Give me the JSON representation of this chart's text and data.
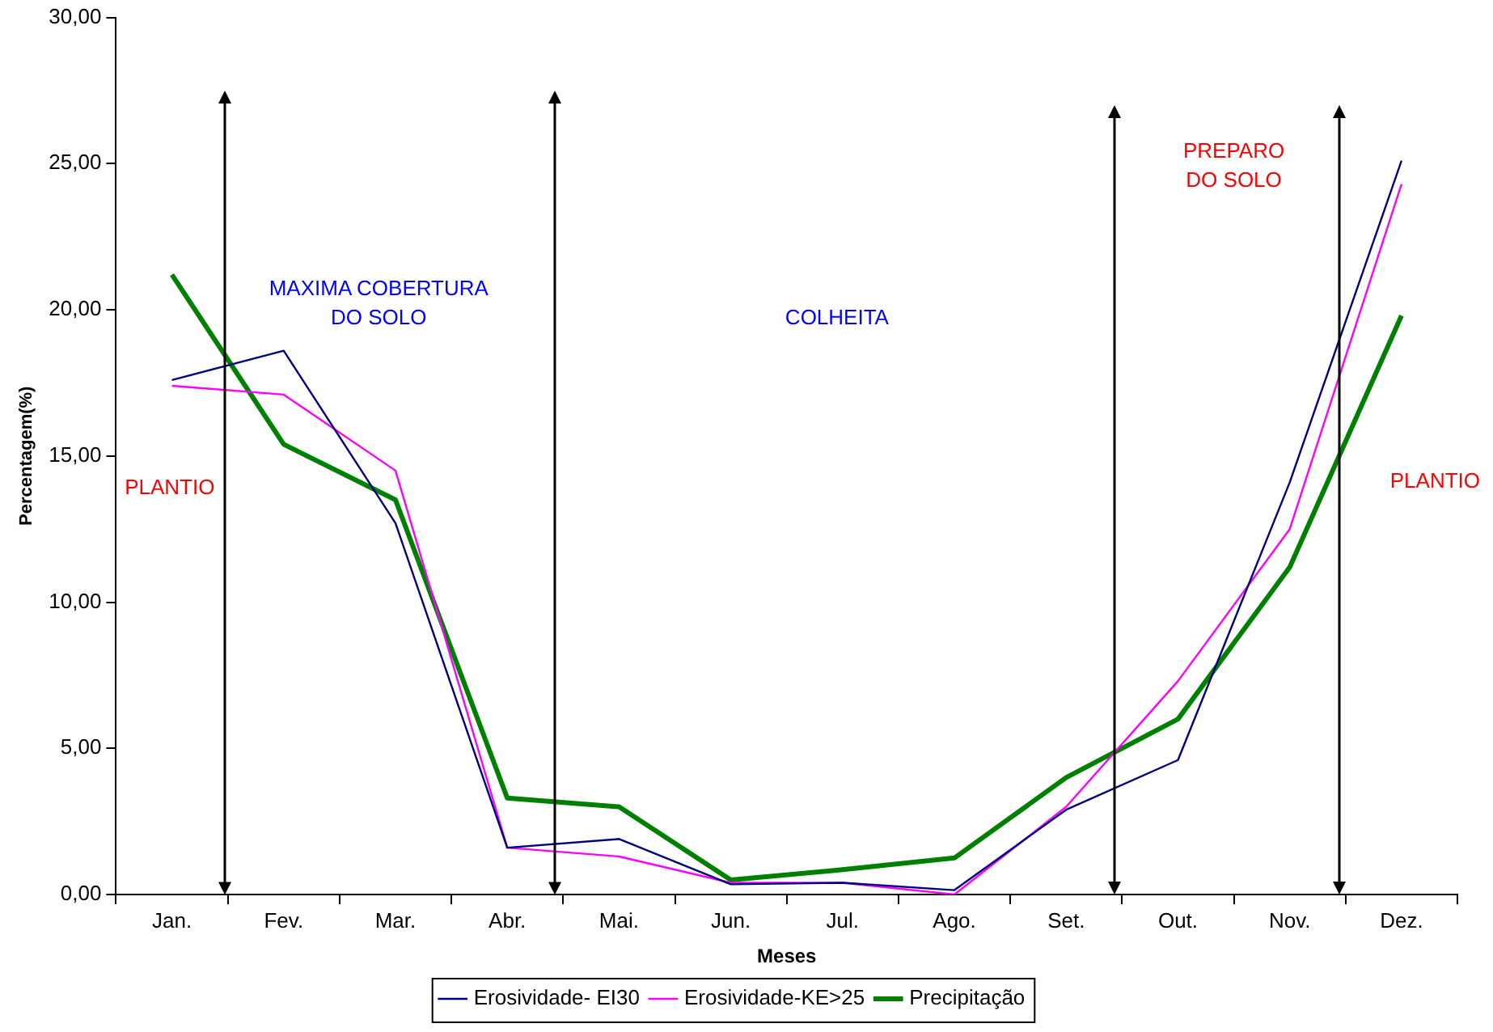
{
  "chart_data": {
    "type": "line",
    "xlabel": "Meses",
    "ylabel": "Percentagem(%)",
    "categories": [
      "Jan.",
      "Fev.",
      "Mar.",
      "Abr.",
      "Mai.",
      "Jun.",
      "Jul.",
      "Ago.",
      "Set.",
      "Out.",
      "Nov.",
      "Dez."
    ],
    "series": [
      {
        "name": "Erosividade- EI30",
        "color": "#000080",
        "values": [
          17.6,
          18.6,
          12.7,
          1.6,
          1.9,
          0.35,
          0.4,
          0.15,
          2.9,
          4.6,
          14.1,
          25.1
        ]
      },
      {
        "name": "Erosividade-KE>25",
        "color": "#ff00ff",
        "values": [
          17.4,
          17.1,
          14.5,
          1.6,
          1.3,
          0.4,
          0.4,
          0.0,
          3.0,
          7.3,
          12.5,
          24.3
        ]
      },
      {
        "name": "Precipitação",
        "color": "#008000",
        "values": [
          21.2,
          15.4,
          13.5,
          3.3,
          3.0,
          0.5,
          0.85,
          1.25,
          4.0,
          6.0,
          11.2,
          19.8
        ]
      }
    ],
    "ylim": [
      0,
      30
    ],
    "yticks": [
      {
        "value": 0,
        "label": "0,00"
      },
      {
        "value": 5,
        "label": "5,00"
      },
      {
        "value": 10,
        "label": "10,00"
      },
      {
        "value": 15,
        "label": "15,00"
      },
      {
        "value": 20,
        "label": "20,00"
      },
      {
        "value": 25,
        "label": "25,00"
      },
      {
        "value": 30,
        "label": "30,00"
      }
    ],
    "annotations": [
      "PLANTIO",
      "MAXIMA COBERTURA\nDO SOLO",
      "COLHEITA",
      "PREPARO\nDO SOLO",
      "PLANTIO"
    ],
    "grid": false,
    "legend": "bottom",
    "marker": "none",
    "line_style": "solid"
  }
}
